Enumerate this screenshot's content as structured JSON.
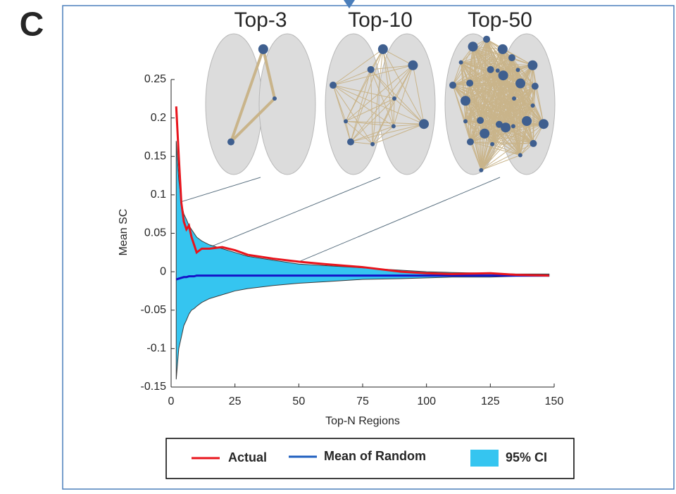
{
  "panel_label": "C",
  "chart_data": {
    "type": "line",
    "insets": [
      "Top-3",
      "Top-10",
      "Top-50"
    ],
    "xlabel": "Top-N Regions",
    "ylabel": "Mean SC",
    "x": [
      2,
      3,
      4,
      5,
      6,
      7,
      8,
      9,
      10,
      12,
      15,
      20,
      25,
      30,
      40,
      50,
      60,
      75,
      90,
      100,
      110,
      125,
      135,
      148
    ],
    "series": [
      {
        "name": "Actual",
        "color": "#e8141c",
        "values": [
          0.215,
          0.15,
          0.09,
          0.065,
          0.055,
          0.06,
          0.045,
          0.035,
          0.025,
          0.03,
          0.03,
          0.032,
          0.028,
          0.022,
          0.017,
          0.013,
          0.01,
          0.006,
          0.0,
          -0.002,
          -0.003,
          -0.002,
          -0.004,
          -0.005
        ]
      },
      {
        "name": "Mean of Random",
        "color": "#1414c8",
        "values": [
          -0.01,
          -0.009,
          -0.008,
          -0.007,
          -0.007,
          -0.006,
          -0.006,
          -0.006,
          -0.005,
          -0.005,
          -0.005,
          -0.005,
          -0.005,
          -0.005,
          -0.005,
          -0.005,
          -0.005,
          -0.005,
          -0.005,
          -0.005,
          -0.005,
          -0.005,
          -0.005,
          -0.005
        ]
      }
    ],
    "ci": {
      "name": "95% CI",
      "color": "#35c5f0",
      "upper": [
        0.17,
        0.12,
        0.09,
        0.075,
        0.068,
        0.06,
        0.055,
        0.05,
        0.045,
        0.04,
        0.035,
        0.03,
        0.025,
        0.02,
        0.015,
        0.01,
        0.008,
        0.005,
        0.002,
        0.0,
        -0.001,
        -0.002,
        -0.003,
        -0.003
      ],
      "lower": [
        -0.14,
        -0.1,
        -0.085,
        -0.07,
        -0.063,
        -0.055,
        -0.05,
        -0.048,
        -0.045,
        -0.04,
        -0.035,
        -0.03,
        -0.025,
        -0.022,
        -0.018,
        -0.015,
        -0.013,
        -0.01,
        -0.009,
        -0.008,
        -0.007,
        -0.007,
        -0.006,
        -0.006
      ]
    },
    "xlim": [
      0,
      150
    ],
    "xticks": [
      0,
      25,
      50,
      75,
      100,
      125,
      150
    ],
    "ylim": [
      -0.15,
      0.25
    ],
    "yticks": [
      -0.15,
      -0.1,
      -0.05,
      0,
      0.05,
      0.1,
      0.15,
      0.2,
      0.25
    ],
    "legend": "bottom"
  }
}
